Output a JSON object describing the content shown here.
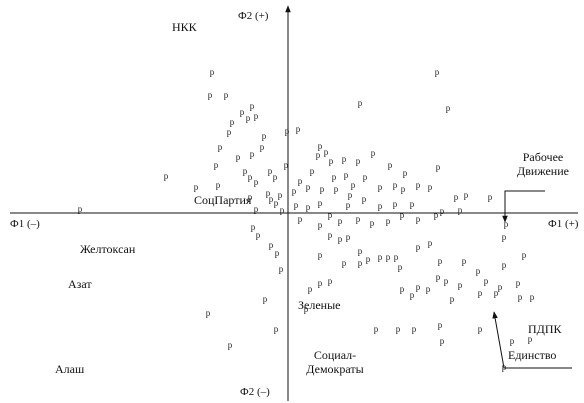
{
  "chart_data": {
    "type": "scatter",
    "marker": "р",
    "x_label_neg": "Ф1 (–)",
    "x_label_pos": "Ф1 (+)",
    "y_label_pos": "Ф2 (+)",
    "y_label_neg": "Ф2 (–)",
    "annotations": [
      "НКК",
      "СоцПартия",
      "Желтоксан",
      "Азат",
      "Алаш",
      "Зеленые",
      "Социал-Демократы",
      "Рабочее Движение",
      "ПДПК",
      "Единство"
    ],
    "xlim": [
      -2.78,
      2.9
    ],
    "ylim": [
      -1.6,
      2.03
    ],
    "color": "#222222",
    "x": [
      -0.76,
      -0.78,
      -0.62,
      -0.46,
      -0.36,
      -0.32,
      -0.4,
      -0.56,
      -0.59,
      -0.24,
      -0.26,
      -0.68,
      -0.5,
      -0.36,
      -0.72,
      -1.22,
      -0.7,
      -0.92,
      -0.43,
      -0.38,
      -0.32,
      -0.18,
      -0.13,
      -0.2,
      -0.08,
      -0.38,
      -0.32,
      -0.06,
      -0.12,
      -0.17,
      -0.01,
      -0.02,
      -2.08,
      -0.35,
      -0.3,
      -0.17,
      -0.11,
      -0.07,
      -0.23,
      -0.12,
      -0.8,
      -0.58,
      0.1,
      0.72,
      1.49,
      1.6,
      0.32,
      0.38,
      0.3,
      0.43,
      0.56,
      0.7,
      0.85,
      0.46,
      0.58,
      0.77,
      0.65,
      0.24,
      0.2,
      0.12,
      0.06,
      0.34,
      0.48,
      0.62,
      0.76,
      0.92,
      1.07,
      1.15,
      1.3,
      1.42,
      1.5,
      1.17,
      1.02,
      1.78,
      1.68,
      2.02,
      0.6,
      0.08,
      0.2,
      0.32,
      0.92,
      1.07,
      1.24,
      1.54,
      1.72,
      0.12,
      0.42,
      0.32,
      0.52,
      0.7,
      0.84,
      1.0,
      1.14,
      1.3,
      1.48,
      0.42,
      0.52,
      0.6,
      0.72,
      0.8,
      0.92,
      1.0,
      1.08,
      1.12,
      1.3,
      1.42,
      1.52,
      1.14,
      1.24,
      1.3,
      1.4,
      1.5,
      1.58,
      1.76,
      1.9,
      1.98,
      2.16,
      2.12,
      2.3,
      2.32,
      1.92,
      2.08,
      1.72,
      1.64,
      0.32,
      0.42,
      0.72,
      0.56,
      0.32,
      0.22,
      0.18,
      1.1,
      1.26,
      1.52,
      1.92,
      1.54,
      2.24,
      2.44,
      2.16,
      2.36,
      2.42,
      2.16,
      0.88,
      2.18
    ],
    "y": [
      1.4,
      1.17,
      1.17,
      1.0,
      1.06,
      0.96,
      0.94,
      0.9,
      0.8,
      0.76,
      0.65,
      0.65,
      0.55,
      0.58,
      0.47,
      0.36,
      0.27,
      0.25,
      0.41,
      0.35,
      0.3,
      0.41,
      0.35,
      0.19,
      0.17,
      0.15,
      0.03,
      0.02,
      0.09,
      0.13,
      0.81,
      0.47,
      0.03,
      -0.15,
      -0.23,
      -0.33,
      -0.41,
      -0.57,
      -0.87,
      -1.17,
      -1.01,
      -1.33,
      0.83,
      1.09,
      1.4,
      1.04,
      0.66,
      0.6,
      0.57,
      0.51,
      0.53,
      0.51,
      0.59,
      0.35,
      0.37,
      0.35,
      0.27,
      0.41,
      0.25,
      0.31,
      0.21,
      0.23,
      0.23,
      0.17,
      0.13,
      0.25,
      0.27,
      0.23,
      0.27,
      0.25,
      0.45,
      0.39,
      0.47,
      0.17,
      0.15,
      0.15,
      0.07,
      0.07,
      0.05,
      0.09,
      0.06,
      0.08,
      0.08,
      0.01,
      0.02,
      -0.07,
      -0.03,
      -0.13,
      -0.09,
      -0.07,
      -0.11,
      -0.09,
      -0.03,
      -0.07,
      -0.03,
      -0.23,
      -0.27,
      -0.25,
      -0.39,
      -0.47,
      -0.45,
      -0.45,
      -0.45,
      -0.55,
      -0.35,
      -0.31,
      -0.49,
      -0.77,
      -0.83,
      -0.75,
      -0.77,
      -0.65,
      -0.69,
      -0.49,
      -0.59,
      -0.69,
      -0.53,
      -0.75,
      -0.71,
      -0.85,
      -0.81,
      -0.81,
      -0.73,
      -0.87,
      -0.71,
      -0.69,
      -0.51,
      -0.51,
      -0.43,
      -0.77,
      -0.97,
      -1.17,
      -1.17,
      -1.13,
      -1.17,
      -1.29,
      -1.29,
      -0.85,
      -0.25,
      -0.43,
      -1.27,
      -1.55,
      -1.17,
      -0.12
    ]
  }
}
